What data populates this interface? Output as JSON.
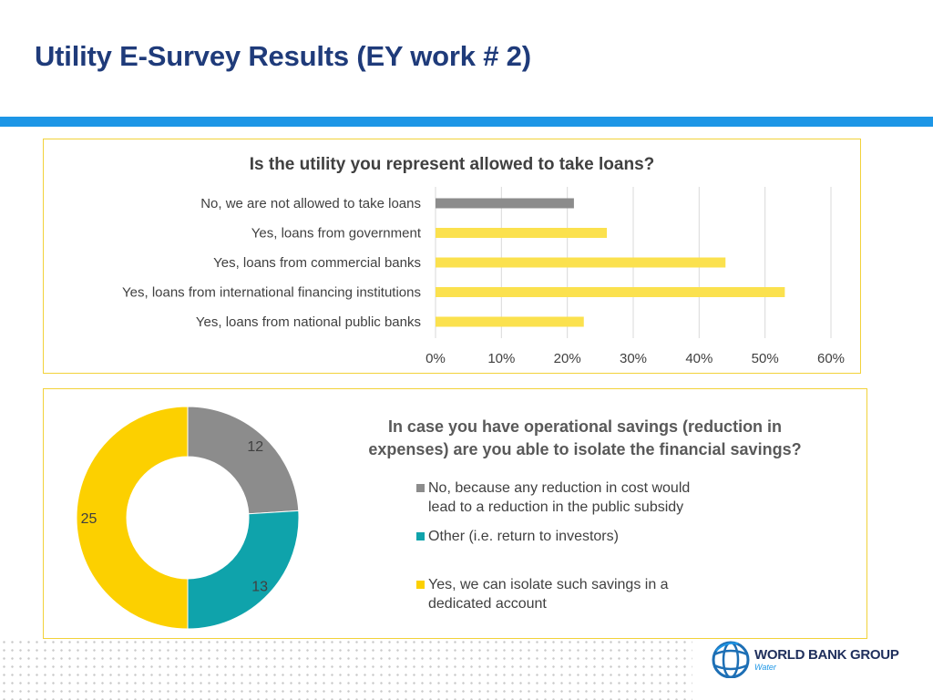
{
  "slide": {
    "title": "Utility E-Survey Results (EY work # 2)"
  },
  "logo": {
    "text": "WORLD BANK GROUP",
    "sub": "Water"
  },
  "colors": {
    "title": "#1f3b7a",
    "rule": "#1d96e6",
    "gray": "#8c8c8c",
    "yellow": "#fbe14e",
    "donut_yellow": "#fcd000",
    "teal": "#0fa3ab"
  },
  "chart_data": [
    {
      "type": "bar",
      "orientation": "horizontal",
      "title": "Is the utility you represent allowed to take loans?",
      "categories": [
        "No, we are not allowed to take loans",
        "Yes, loans from government",
        "Yes, loans from commercial banks",
        "Yes, loans from international financing institutions",
        "Yes, loans from national public banks"
      ],
      "values": [
        21,
        26,
        44,
        53,
        22.5
      ],
      "bar_colors": [
        "#8c8c8c",
        "#fbe14e",
        "#fbe14e",
        "#fbe14e",
        "#fbe14e"
      ],
      "xlim": [
        0,
        60
      ],
      "xticks": [
        "0%",
        "10%",
        "20%",
        "30%",
        "40%",
        "50%",
        "60%"
      ],
      "grid": true,
      "xlabel": "",
      "ylabel": ""
    },
    {
      "type": "pie",
      "donut": true,
      "title_lines": [
        "In case you have operational savings (reduction in",
        "expenses) are you able to isolate the financial savings?"
      ],
      "slices": [
        {
          "label": "No, because any reduction in cost would lead to a reduction in the public subsidy",
          "legend_lines": [
            "No, because any reduction in cost would",
            "lead to a reduction in the public subsidy"
          ],
          "value": 12,
          "display": "12",
          "color": "#8c8c8c"
        },
        {
          "label": "Other (i.e. return to investors)",
          "legend_lines": [
            "Other (i.e. return to investors)"
          ],
          "value": 13,
          "display": "13",
          "color": "#0fa3ab"
        },
        {
          "label": "Yes, we can isolate such savings in a dedicated account",
          "legend_lines": [
            "Yes, we can isolate such savings in a",
            "dedicated account"
          ],
          "value": 25,
          "display": "25",
          "color": "#fcd000"
        }
      ],
      "legend_position": "right"
    }
  ]
}
